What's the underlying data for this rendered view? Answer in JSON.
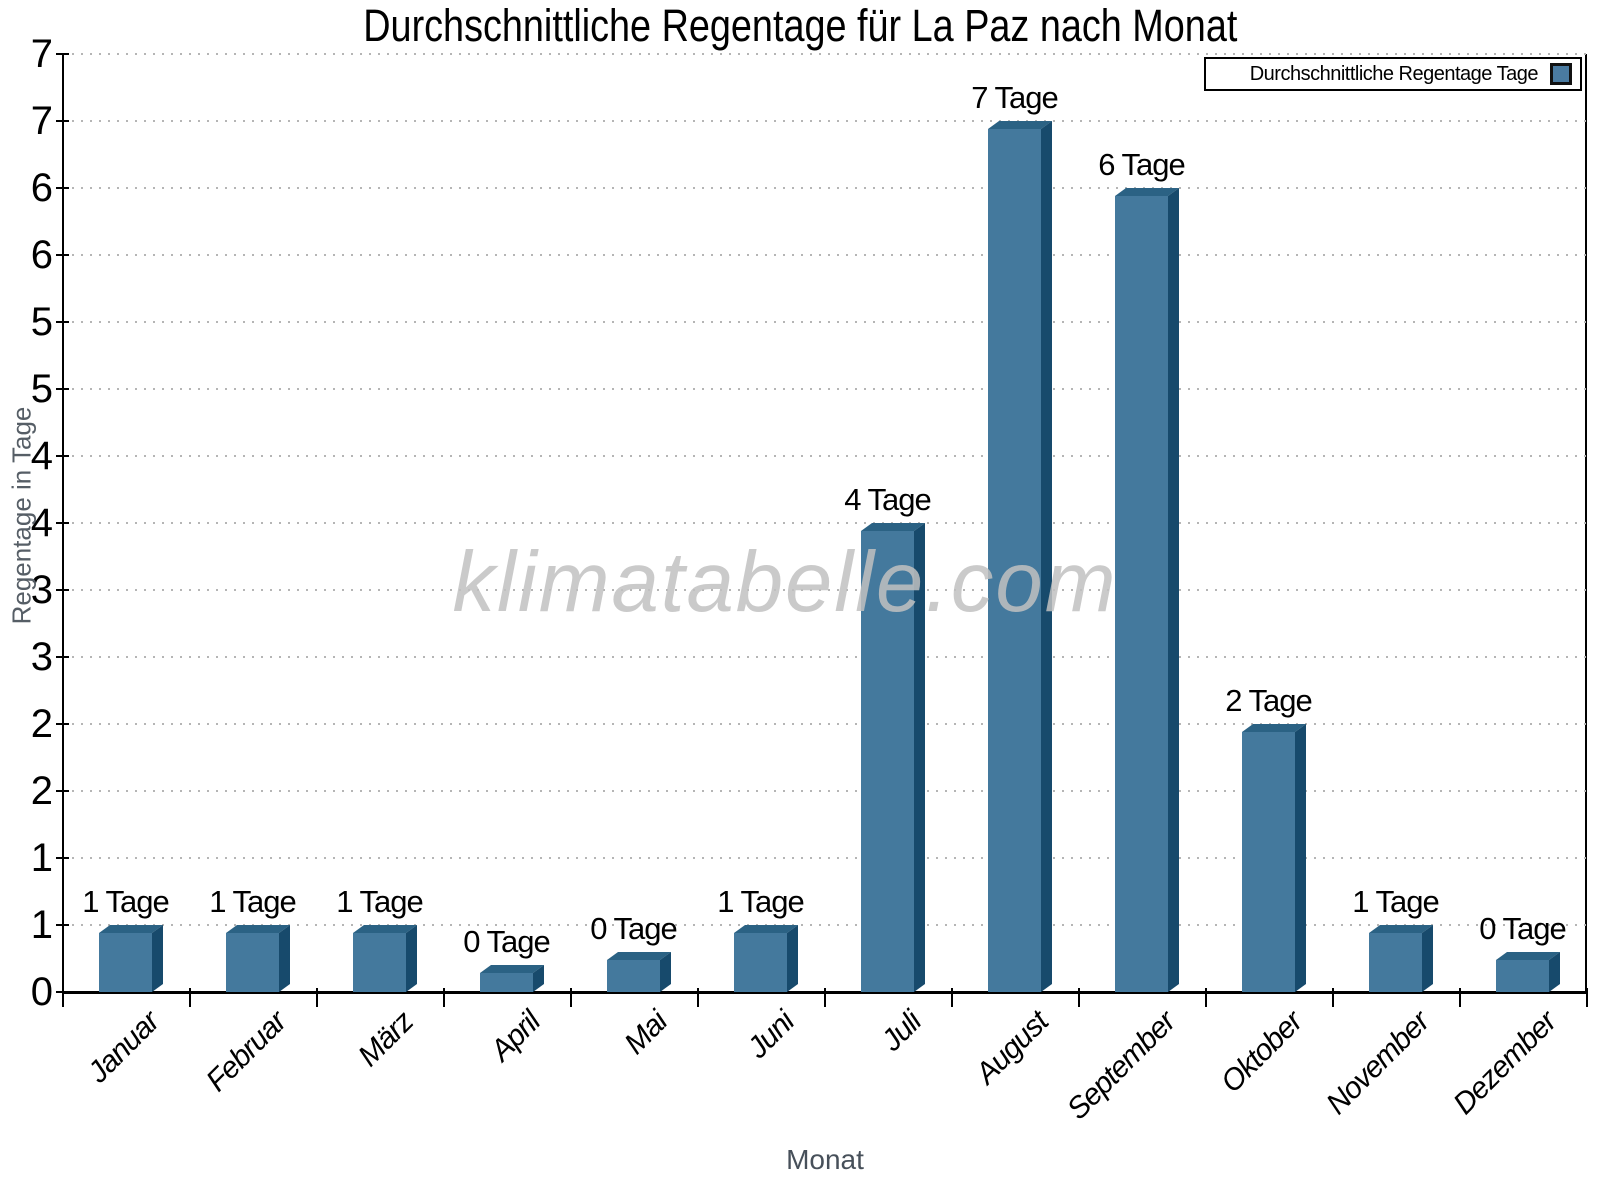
{
  "title": "Durchschnittliche Regentage für La Paz nach Monat",
  "watermark": "klimatabelle.com",
  "legend": {
    "label": "Durchschnittliche Regentage Tage",
    "swatch_color": "#4a7ba1"
  },
  "axes": {
    "x_label": "Monat",
    "y_label": "Regentage in Tage",
    "ytick_labels": [
      "0",
      "1",
      "1",
      "2",
      "2",
      "3",
      "3",
      "4",
      "4",
      "5",
      "5",
      "6",
      "6",
      "7",
      "7"
    ]
  },
  "chart_data": {
    "type": "bar",
    "title": "Durchschnittliche Regentage für La Paz nach Monat",
    "xlabel": "Monat",
    "ylabel": "Regentage in Tage",
    "categories": [
      "Januar",
      "Februar",
      "März",
      "April",
      "Mai",
      "Juni",
      "Juli",
      "August",
      "September",
      "Oktober",
      "November",
      "Dezember"
    ],
    "values": [
      0.5,
      0.5,
      0.5,
      0.2,
      0.3,
      0.5,
      3.5,
      6.5,
      6.0,
      2.0,
      0.5,
      0.3
    ],
    "value_labels": [
      "1 Tage",
      "1 Tage",
      "1 Tage",
      "0 Tage",
      "0 Tage",
      "1 Tage",
      "4 Tage",
      "7 Tage",
      "6 Tage",
      "2 Tage",
      "1 Tage",
      "0 Tage"
    ],
    "ylim": [
      0,
      7
    ],
    "ytick_interval": 0.5,
    "ytick_labels_shown": [
      "0",
      "1",
      "1",
      "2",
      "2",
      "3",
      "3",
      "4",
      "4",
      "5",
      "5",
      "6",
      "6",
      "7",
      "7"
    ],
    "grid": "horizontal dotted, every 0.5",
    "legend_position": "top-right",
    "legend_label": "Durchschnittliche Regentage Tage",
    "colors": {
      "bar_face": "#44799d",
      "bar_side": "#174a6c",
      "bar_top": "#2b6284",
      "grid": "#b5b5b5",
      "axis": "#000000",
      "axis_title": "#4d565e",
      "watermark": "#c1c1c1"
    }
  }
}
